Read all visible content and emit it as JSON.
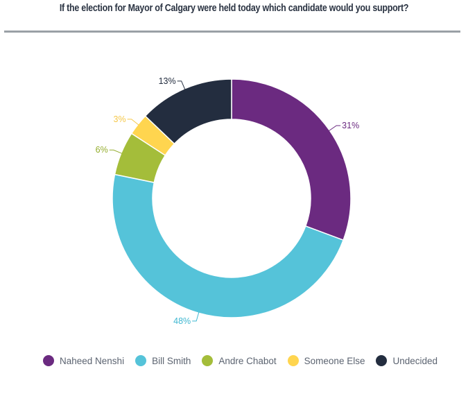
{
  "title": "If the election for Mayor of Calgary were held today which candidate would you support?",
  "chart_data": {
    "type": "pie",
    "donut": true,
    "title": "If the election for Mayor of Calgary were held today which candidate would you support?",
    "categories": [
      "Naheed Nenshi",
      "Bill Smith",
      "Andre Chabot",
      "Someone Else",
      "Undecided"
    ],
    "values": [
      31,
      48,
      6,
      3,
      13
    ],
    "value_labels": [
      "31%",
      "48%",
      "6%",
      "3%",
      "13%"
    ],
    "colors": [
      "#6b2a80",
      "#55c3d9",
      "#a4bd3a",
      "#ffd54f",
      "#232d3f"
    ],
    "label_colors": [
      "#6b2a80",
      "#3fb7d1",
      "#94ad2d",
      "#f5c84a",
      "#232d3f"
    ],
    "legend_position": "bottom",
    "start_angle_deg": 0,
    "direction": "clockwise"
  }
}
